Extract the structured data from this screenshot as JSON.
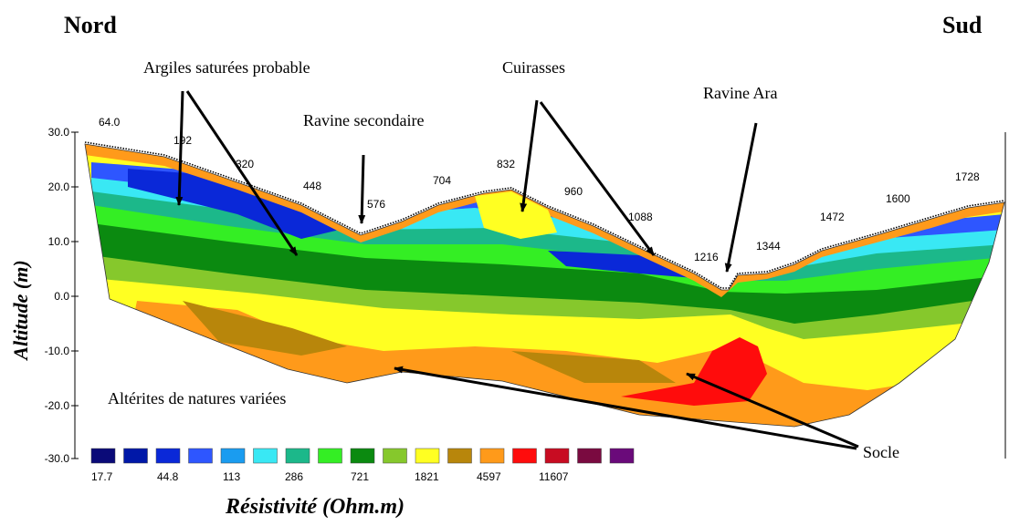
{
  "directions": {
    "left": "Nord",
    "right": "Sud"
  },
  "annotations": {
    "argiles": "Argiles saturées probable",
    "ravine_secondaire": "Ravine secondaire",
    "cuirasses": "Cuirasses",
    "ravine_ara": "Ravine Ara",
    "alterites": "Altérites de natures variées",
    "socle": "Socle"
  },
  "y_axis": {
    "label": "Altitude (m)",
    "ticks": [
      "30.0",
      "20.0",
      "10.0",
      "0.0",
      "-10.0",
      "-20.0",
      "-30.0"
    ]
  },
  "distance_markers": [
    "64.0",
    "192",
    "320",
    "448",
    "576",
    "704",
    "832",
    "960",
    "1088",
    "1216",
    "1344",
    "1472",
    "1600",
    "1728"
  ],
  "legend": {
    "title": "Résistivité (Ohm.m)",
    "labels": [
      "17.7",
      "44.8",
      "113",
      "286",
      "721",
      "1821",
      "4597",
      "11607"
    ],
    "colors": [
      "#0a0a78",
      "#0018a8",
      "#0a28d8",
      "#2e56ff",
      "#1a9cf0",
      "#39e8f4",
      "#1cb88a",
      "#34ee24",
      "#0b8a10",
      "#86c82c",
      "#ffff22",
      "#b8860b",
      "#ff9a1a",
      "#ff0c0c",
      "#c80c22",
      "#7a0a40",
      "#6a0a7a"
    ]
  }
}
